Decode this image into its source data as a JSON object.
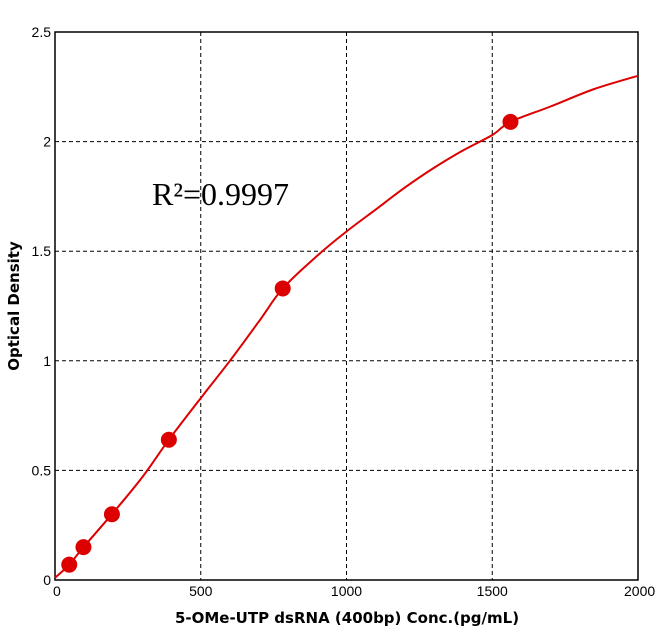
{
  "chart_data": {
    "type": "scatter",
    "xlabel": "5-OMe-UTP dsRNA (400bp) Conc.(pg/mL)",
    "ylabel": "Optical Density",
    "xlim": [
      0,
      2000
    ],
    "ylim": [
      0,
      2.5
    ],
    "x_ticks": [
      "0",
      "500",
      "1000",
      "1500",
      "2000"
    ],
    "y_ticks": [
      "0",
      "0.5",
      "1",
      "1.5",
      "2",
      "2.5"
    ],
    "grid": true,
    "annotation": "R²=0.9997",
    "colors": {
      "series": "#dd0000",
      "grid": "#000000"
    },
    "points": [
      {
        "x": 48.8,
        "y": 0.07
      },
      {
        "x": 97.6,
        "y": 0.15
      },
      {
        "x": 195.3,
        "y": 0.3
      },
      {
        "x": 390.6,
        "y": 0.64
      },
      {
        "x": 781.2,
        "y": 1.33
      },
      {
        "x": 1562.5,
        "y": 2.09
      }
    ],
    "fit_curve": [
      {
        "x": 0,
        "y": 0.01
      },
      {
        "x": 48.8,
        "y": 0.07
      },
      {
        "x": 97.6,
        "y": 0.15
      },
      {
        "x": 195.3,
        "y": 0.3
      },
      {
        "x": 300,
        "y": 0.47
      },
      {
        "x": 390.6,
        "y": 0.64
      },
      {
        "x": 500,
        "y": 0.83
      },
      {
        "x": 600,
        "y": 1.0
      },
      {
        "x": 700,
        "y": 1.18
      },
      {
        "x": 781.2,
        "y": 1.33
      },
      {
        "x": 900,
        "y": 1.48
      },
      {
        "x": 1000,
        "y": 1.59
      },
      {
        "x": 1100,
        "y": 1.69
      },
      {
        "x": 1200,
        "y": 1.79
      },
      {
        "x": 1300,
        "y": 1.88
      },
      {
        "x": 1400,
        "y": 1.96
      },
      {
        "x": 1500,
        "y": 2.03
      },
      {
        "x": 1562.5,
        "y": 2.09
      },
      {
        "x": 1700,
        "y": 2.16
      },
      {
        "x": 1850,
        "y": 2.24
      },
      {
        "x": 2000,
        "y": 2.3
      }
    ]
  }
}
